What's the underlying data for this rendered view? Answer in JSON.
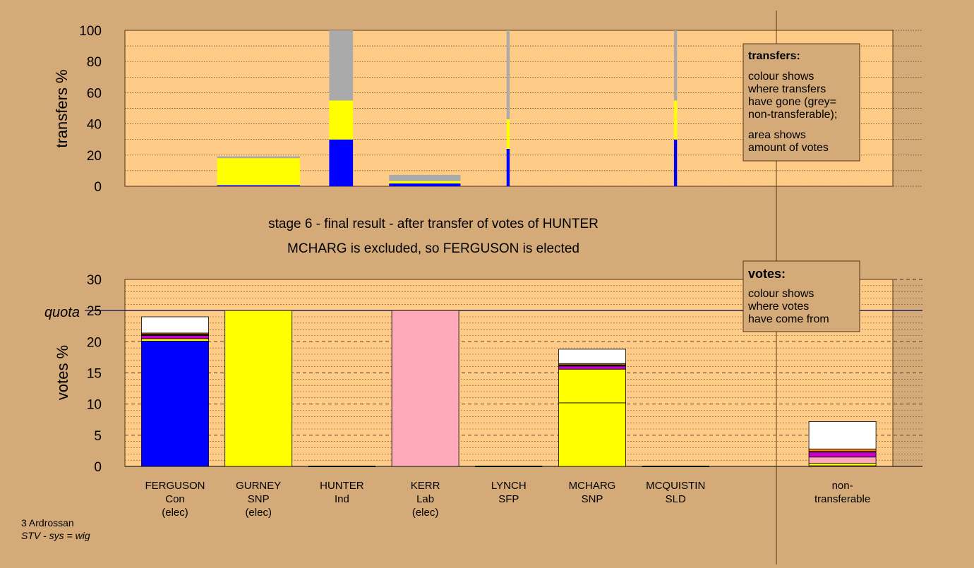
{
  "colors": {
    "background": "#d4aa78",
    "plot_bg": "#ffcc88",
    "con": "#0000ff",
    "snp": "#ffff00",
    "lab": "#ffaabb",
    "nontransferable": "#aaaaaa",
    "exhausted": "#ffffff",
    "sfp": "#cc00cc",
    "sld": "#ff8800",
    "dark": "#884400"
  },
  "stage_title": "stage 6 - final result - after transfer of votes of HUNTER",
  "stage_subtitle": "MCHARG is excluded, so FERGUSON is elected",
  "footer": {
    "line1": "3 Ardrossan",
    "line2": "STV - sys = wig"
  },
  "legend_transfers": {
    "title": "transfers:",
    "lines": [
      "colour shows",
      "where transfers",
      "have gone (grey=",
      "non-transferable);",
      "area shows",
      "amount of votes"
    ]
  },
  "legend_votes": {
    "title": "votes:",
    "lines": [
      "colour shows",
      "where votes",
      "have come from"
    ]
  },
  "chart_data": [
    {
      "type": "bar",
      "ylabel": "transfers %",
      "ylim": [
        0,
        100
      ],
      "yticks": [
        0,
        20,
        40,
        60,
        80,
        100
      ],
      "bars": [
        {
          "x0": 0.12,
          "x1": 0.228,
          "segments": [
            {
              "color": "con",
              "value": 0.7
            },
            {
              "color": "snp",
              "value": 17.3
            },
            {
              "color": "nontransferable",
              "value": 1.2
            }
          ]
        },
        {
          "x0": 0.266,
          "x1": 0.297,
          "segments": [
            {
              "color": "con",
              "value": 30
            },
            {
              "color": "snp",
              "value": 25
            },
            {
              "color": "nontransferable",
              "value": 45
            }
          ]
        },
        {
          "x0": 0.344,
          "x1": 0.437,
          "segments": [
            {
              "color": "con",
              "value": 1.8
            },
            {
              "color": "snp",
              "value": 1.5
            },
            {
              "color": "nontransferable",
              "value": 4
            }
          ]
        },
        {
          "x0": 0.497,
          "x1": 0.501,
          "segments": [
            {
              "color": "con",
              "value": 24
            },
            {
              "color": "snp",
              "value": 19
            },
            {
              "color": "nontransferable",
              "value": 57
            }
          ]
        },
        {
          "x0": 0.715,
          "x1": 0.719,
          "segments": [
            {
              "color": "con",
              "value": 30
            },
            {
              "color": "snp",
              "value": 25
            },
            {
              "color": "nontransferable",
              "value": 45
            }
          ]
        }
      ]
    },
    {
      "type": "bar",
      "ylabel": "votes %",
      "ylim": [
        0,
        30
      ],
      "yticks": [
        0,
        5,
        10,
        15,
        20,
        25,
        30
      ],
      "quota": {
        "label": "quota",
        "value": 25
      },
      "categories": [
        {
          "name": "FERGUSON",
          "party": "Con",
          "status": "(elec)"
        },
        {
          "name": "GURNEY",
          "party": "SNP",
          "status": "(elec)"
        },
        {
          "name": "HUNTER",
          "party": "Ind",
          "status": ""
        },
        {
          "name": "KERR",
          "party": "Lab",
          "status": "(elec)"
        },
        {
          "name": "LYNCH",
          "party": "SFP",
          "status": ""
        },
        {
          "name": "MCHARG",
          "party": "SNP",
          "status": ""
        },
        {
          "name": "MCQUISTIN",
          "party": "SLD",
          "status": ""
        },
        {
          "name": "",
          "party": "",
          "status": ""
        },
        {
          "name": "non-",
          "party": "transferable",
          "status": ""
        }
      ],
      "bars": [
        {
          "category": 0,
          "segments": [
            {
              "color": "con",
              "value": 20.1
            },
            {
              "color": "snp",
              "value": 0.4
            },
            {
              "color": "sfp",
              "value": 0.5
            },
            {
              "color": "lab",
              "value": 0.1
            },
            {
              "color": "dark",
              "value": 0.1
            },
            {
              "color": "sld",
              "value": 0.2
            },
            {
              "color": "exhausted",
              "value": 2.6
            }
          ]
        },
        {
          "category": 1,
          "segments": [
            {
              "color": "snp",
              "value": 25.0
            }
          ]
        },
        {
          "category": 2,
          "segments": [
            {
              "color": "snp",
              "value": 0
            }
          ]
        },
        {
          "category": 3,
          "segments": [
            {
              "color": "lab",
              "value": 25.0
            }
          ]
        },
        {
          "category": 4,
          "segments": [
            {
              "color": "snp",
              "value": 0
            }
          ]
        },
        {
          "category": 5,
          "segments": [
            {
              "color": "snp",
              "value": 10.2
            },
            {
              "color": "snp",
              "value": 5.4
            },
            {
              "color": "sfp",
              "value": 0.5
            },
            {
              "color": "lab",
              "value": 0.1
            },
            {
              "color": "dark",
              "value": 0.1
            },
            {
              "color": "sld",
              "value": 0.2
            },
            {
              "color": "exhausted",
              "value": 2.3
            }
          ]
        },
        {
          "category": 6,
          "segments": [
            {
              "color": "snp",
              "value": 0
            }
          ]
        },
        {
          "category": 8,
          "segments": [
            {
              "color": "lab",
              "value": 0.1
            },
            {
              "color": "snp",
              "value": 0.4
            },
            {
              "color": "lab",
              "value": 1.0
            },
            {
              "color": "sfp",
              "value": 0.8
            },
            {
              "color": "dark",
              "value": 0.1
            },
            {
              "color": "sld",
              "value": 0.4
            },
            {
              "color": "exhausted",
              "value": 4.4
            }
          ]
        }
      ]
    }
  ]
}
